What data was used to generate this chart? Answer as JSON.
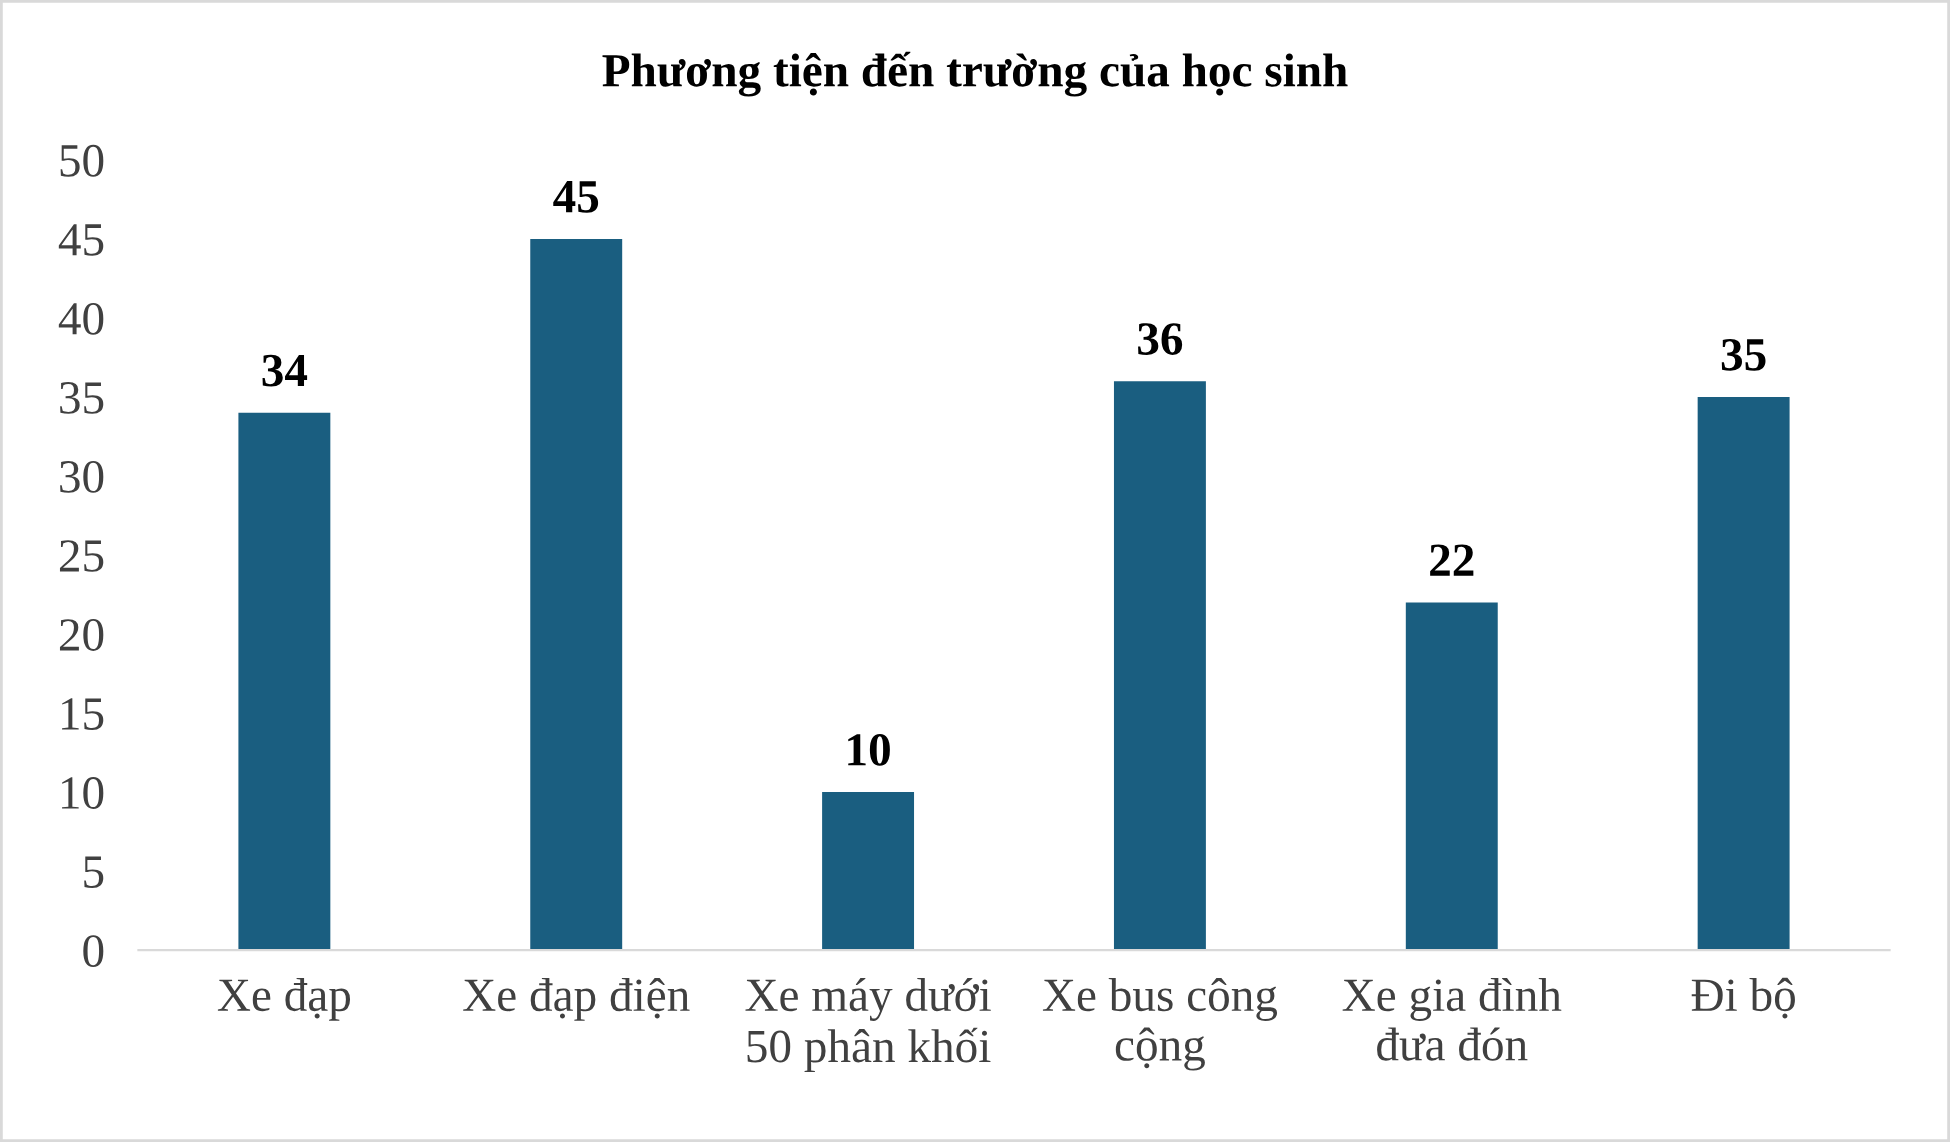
{
  "chart_data": {
    "type": "bar",
    "title": "Phương tiện đến trường của học sinh",
    "categories": [
      "Xe đạp",
      "Xe đạp điện",
      "Xe máy dưới\n50 phân khối",
      "Xe bus công\ncộng",
      "Xe gia đình\nđưa đón",
      "Đi bộ"
    ],
    "values": [
      34,
      45,
      10,
      36,
      22,
      35
    ],
    "color": "#1a5e80",
    "ylim": [
      0,
      50
    ],
    "yticks": [
      0,
      5,
      10,
      15,
      20,
      25,
      30,
      35,
      40,
      45,
      50
    ],
    "grid": false,
    "data_labels": true
  }
}
